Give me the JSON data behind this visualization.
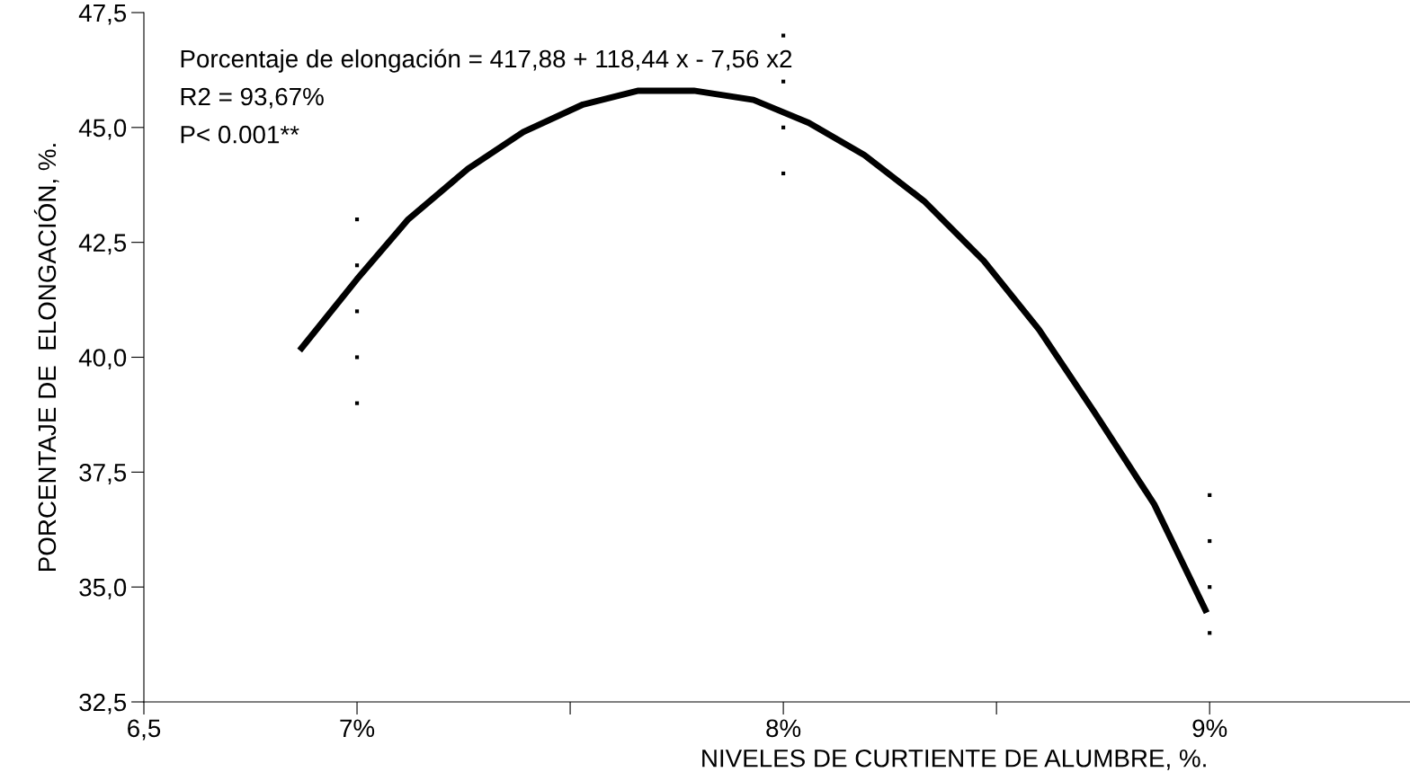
{
  "chart_data": {
    "type": "line",
    "xlabel": "NIVELES DE CURTIENTE DE ALUMBRE, %.",
    "ylabel": "PORCENTAJE DE  ELONGACIÓN, %.",
    "xlim": [
      6.5,
      9.47
    ],
    "ylim": [
      32.5,
      47.5
    ],
    "xticks": [
      {
        "value": 6.5,
        "label": "6,5"
      },
      {
        "value": 7,
        "label": "7%"
      },
      {
        "value": 7.5,
        "label": null
      },
      {
        "value": 8,
        "label": "8%"
      },
      {
        "value": 8.5,
        "label": null
      },
      {
        "value": 9,
        "label": "9%"
      }
    ],
    "yticks": [
      {
        "value": 32.5,
        "label": "32,5"
      },
      {
        "value": 35,
        "label": "35,0"
      },
      {
        "value": 37.5,
        "label": "37,5"
      },
      {
        "value": 40,
        "label": "40,0"
      },
      {
        "value": 42.5,
        "label": "42,5"
      },
      {
        "value": 45,
        "label": "45,0"
      },
      {
        "value": 47.5,
        "label": "47,5"
      }
    ],
    "grid": false,
    "legend": false,
    "annotations": [
      "Porcentaje de elongación = 417,88 + 118,44 x - 7,56 x2",
      "R2 = 93,67%",
      "P< 0.001**"
    ],
    "series": [
      {
        "color": "#000000",
        "marker": "none",
        "x": [
          6.87,
          7.0,
          7.12,
          7.26,
          7.39,
          7.53,
          7.66,
          7.79,
          7.93,
          8.06,
          8.19,
          8.33,
          8.47,
          8.6,
          8.73,
          8.87,
          8.99
        ],
        "values": [
          40.2,
          41.7,
          43.0,
          44.1,
          44.9,
          45.5,
          45.8,
          45.8,
          45.6,
          45.1,
          44.4,
          43.4,
          42.1,
          40.6,
          38.8,
          36.8,
          34.5
        ]
      },
      {
        "type": "scatter",
        "color": "#000000",
        "marker": "square",
        "x": [
          7,
          7,
          7,
          7,
          7,
          8,
          8,
          8,
          8,
          9,
          9,
          9,
          9
        ],
        "values": [
          43,
          42,
          41,
          40,
          39,
          47,
          46,
          45,
          44,
          37,
          36,
          35,
          34
        ]
      }
    ]
  }
}
